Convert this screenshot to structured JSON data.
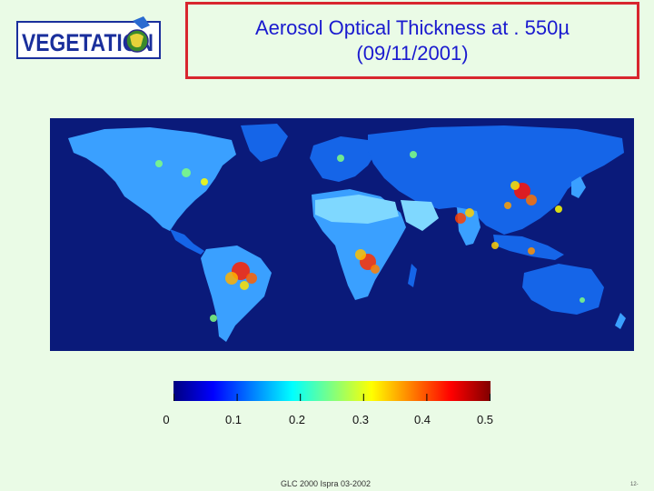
{
  "logo": {
    "text": "VEGETATION"
  },
  "title": {
    "line1": "Aerosol Optical Thickness at . 550µ",
    "line2": "(09/11/2001)"
  },
  "map": {
    "variable": "Aerosol Optical Thickness",
    "ocean_color": "#0a1a7a",
    "land_colors": [
      "#1565e8",
      "#3aa0ff",
      "#2a84ff",
      "#7fd8ff"
    ]
  },
  "colorbar": {
    "range": [
      0,
      0.5
    ],
    "tick_labels": [
      "0",
      "0.1",
      "0.2",
      "0.3",
      "0.4",
      "0.5"
    ],
    "colors": [
      "#00007f",
      "#0000ff",
      "#0080ff",
      "#00ffff",
      "#80ff80",
      "#ffff00",
      "#ff8000",
      "#ff0000",
      "#800000"
    ]
  },
  "footer": {
    "text": "GLC 2000 Ispra 03-2002"
  },
  "page_number": "12-"
}
